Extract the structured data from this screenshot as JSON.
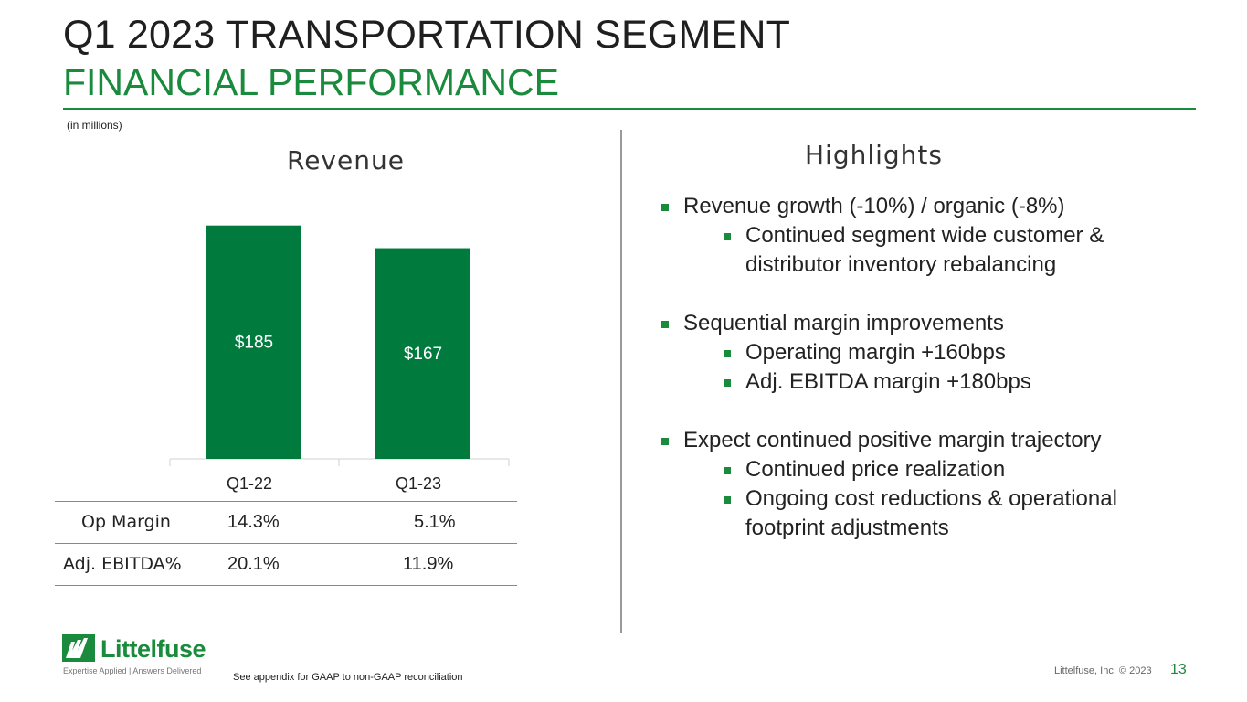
{
  "slide": {
    "title": "Q1 2023 TRANSPORTATION SEGMENT",
    "subtitle": "FINANCIAL PERFORMANCE",
    "units_note": "(in millions)",
    "colors": {
      "brand_green": "#1a8a3c",
      "bar_green": "#007a3d"
    }
  },
  "chart_data": {
    "type": "bar",
    "title": "Revenue",
    "categories": [
      "Q1-22",
      "Q1-23"
    ],
    "values": [
      185,
      167
    ],
    "data_labels": [
      "$185",
      "$167"
    ],
    "ylim": [
      0,
      200
    ],
    "xlabel": "",
    "ylabel": ""
  },
  "metrics": {
    "rows": [
      {
        "label": "Op Margin",
        "q1_22": "14.3%",
        "q1_23": "5.1%"
      },
      {
        "label": "Adj. EBITDA%",
        "q1_22": "20.1%",
        "q1_23": "11.9%"
      }
    ]
  },
  "highlights": {
    "title": "Highlights",
    "groups": [
      {
        "text": "Revenue growth (-10%) / organic (-8%)",
        "subs": [
          "Continued segment wide customer &",
          "distributor inventory rebalancing"
        ]
      },
      {
        "text": "Sequential margin improvements",
        "subs": [
          "Operating margin +160bps",
          "Adj. EBITDA margin +180bps"
        ]
      },
      {
        "text": "Expect continued positive margin trajectory",
        "subs": [
          "Continued price realization",
          "Ongoing cost reductions & operational",
          "footprint adjustments"
        ]
      }
    ]
  },
  "footer": {
    "logo_name": "Littelfuse",
    "tagline": "Expertise Applied | Answers Delivered",
    "footnote": "See appendix for GAAP to non-GAAP reconciliation",
    "copyright": "Littelfuse, Inc. © 2023",
    "page_number": "13"
  }
}
